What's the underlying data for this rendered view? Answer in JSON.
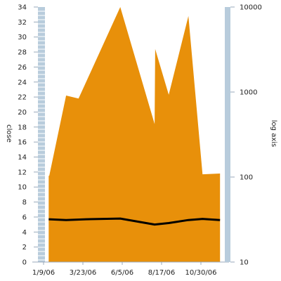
{
  "chart_data": {
    "type": "area",
    "title": "",
    "xlabel": "",
    "ylabel": "close",
    "y2label": "log axis",
    "x_ticks": [
      "1/9/06",
      "3/23/06",
      "6/5/06",
      "8/17/06",
      "10/30/06"
    ],
    "y_ticks": [
      "0",
      "2",
      "4",
      "6",
      "8",
      "10",
      "12",
      "14",
      "16",
      "18",
      "20",
      "22",
      "24",
      "26",
      "28",
      "30",
      "32",
      "34"
    ],
    "y2_ticks": [
      "10",
      "100",
      "1000",
      "10000"
    ],
    "xlim": [
      "2006-01-09",
      "2006-12-24"
    ],
    "ylim": [
      0,
      34
    ],
    "y2lim": [
      10,
      10000
    ],
    "y2_scale": "log",
    "grid": false,
    "series": [
      {
        "type": "area",
        "axis": "left",
        "color": "#E8900A",
        "points": [
          [
            "2006-02-07",
            11.5
          ],
          [
            "2006-02-08",
            11.5
          ],
          [
            "2006-03-10",
            22.2
          ],
          [
            "2006-04-01",
            21.8
          ],
          [
            "2006-06-14",
            34.0
          ],
          [
            "2006-08-14",
            18.4
          ],
          [
            "2006-08-15",
            28.4
          ],
          [
            "2006-09-08",
            22.3
          ],
          [
            "2006-10-13",
            32.8
          ],
          [
            "2006-11-07",
            11.7
          ],
          [
            "2006-12-08",
            11.8
          ]
        ]
      },
      {
        "type": "line",
        "axis": "left",
        "color": "#000000",
        "points": [
          [
            "2006-02-07",
            5.7
          ],
          [
            "2006-03-10",
            5.6
          ],
          [
            "2006-04-15",
            5.7
          ],
          [
            "2006-06-14",
            5.8
          ],
          [
            "2006-08-14",
            5.0
          ],
          [
            "2006-09-08",
            5.2
          ],
          [
            "2006-10-13",
            5.6
          ],
          [
            "2006-11-07",
            5.75
          ],
          [
            "2006-12-08",
            5.6
          ]
        ]
      }
    ],
    "colors": {
      "area": "#E8900A",
      "line": "#000000",
      "axis_band": "#B8CCDC",
      "axis_line": "#9AAABB"
    }
  }
}
